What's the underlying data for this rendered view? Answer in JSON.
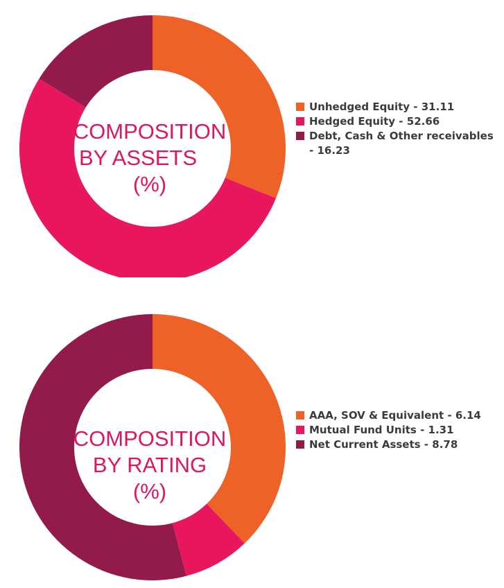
{
  "colors": {
    "orange": "#ee6127",
    "pink": "#e8175d",
    "maroon": "#921b4c",
    "center_text": "#e01560"
  },
  "chart_data": [
    {
      "type": "pie",
      "donut": true,
      "center_text": [
        "COMPOSITION",
        "BY ASSETS",
        "(%)"
      ],
      "legend_position": "right",
      "series": [
        {
          "label": "Unhedged Equity - 31.11",
          "name": "Unhedged Equity",
          "value": 31.11,
          "color": "#ee6127"
        },
        {
          "label": "Hedged Equity - 52.66",
          "name": "Hedged Equity",
          "value": 52.66,
          "color": "#e8175d"
        },
        {
          "label": "Debt, Cash & Other receivables - 16.23",
          "name": "Debt, Cash & Other receivables",
          "value": 16.23,
          "color": "#921b4c"
        }
      ]
    },
    {
      "type": "pie",
      "donut": true,
      "center_text": [
        "COMPOSITION",
        "BY RATING",
        "(%)"
      ],
      "legend_position": "right",
      "series": [
        {
          "label": "AAA, SOV & Equivalent - 6.14",
          "name": "AAA, SOV & Equivalent",
          "value": 6.14,
          "color": "#ee6127"
        },
        {
          "label": "Mutual Fund Units - 1.31",
          "name": "Mutual Fund Units",
          "value": 1.31,
          "color": "#e8175d"
        },
        {
          "label": "Net Current Assets - 8.78",
          "name": "Net Current Assets",
          "value": 8.78,
          "color": "#921b4c"
        }
      ]
    }
  ]
}
